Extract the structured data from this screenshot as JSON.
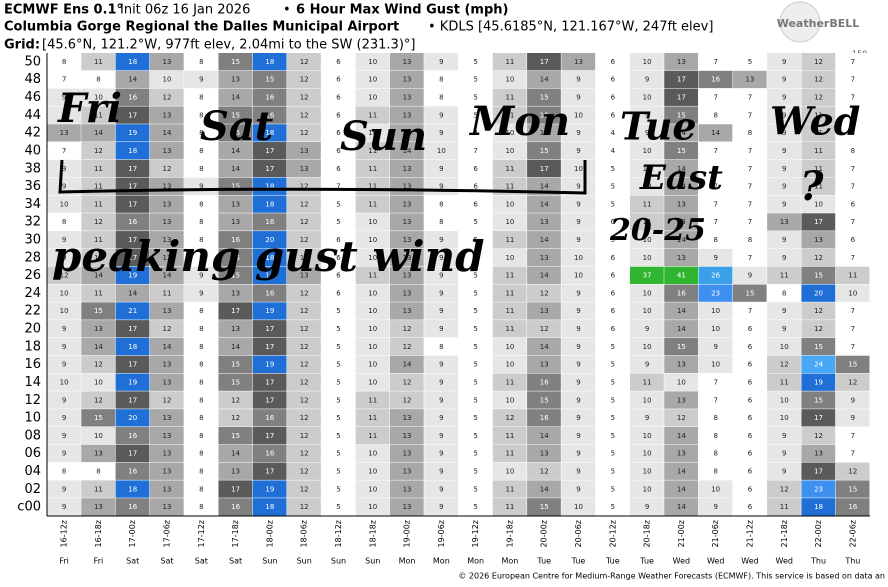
{
  "header": {
    "model": "ECMWF Ens 0.1°",
    "init": "Init 06z 16 Jan 2026",
    "sep": "•",
    "product": "6 Hour Max Wind Gust (mph)",
    "location": "Columbia Gorge Regional the Dalles Municipal Airport",
    "station": "• KDLS [45.6185°N, 121.167°W, 247ft elev]",
    "grid_label": "Grid:",
    "grid": "[45.6°N, 121.2°W, 977ft elev, 2.04mi to the SW (231.3)°]",
    "logo": "WeatherBELL",
    "top_right": "150"
  },
  "heatmap": {
    "columns": [
      "16-12z",
      "16-18z",
      "17-00z",
      "17-06z",
      "17-12z",
      "17-18z",
      "18-00z",
      "18-06z",
      "18-12z",
      "18-18z",
      "19-00z",
      "19-06z",
      "19-12z",
      "19-18z",
      "20-00z",
      "20-06z",
      "20-12z",
      "20-18z",
      "21-00z",
      "21-06z",
      "21-12z",
      "21-18z",
      "22-00z",
      "22-06z"
    ],
    "days": [
      "Fri",
      "Fri",
      "Sat",
      "Sat",
      "Sat",
      "Sat",
      "Sun",
      "Sun",
      "Sun",
      "Sun",
      "Mon",
      "Mon",
      "Mon",
      "Mon",
      "Tue",
      "Tue",
      "Tue",
      "Tue",
      "Wed",
      "Wed",
      "Wed",
      "Wed",
      "Thu",
      "Thu"
    ],
    "rows": [
      "50",
      "48",
      "46",
      "44",
      "42",
      "40",
      "38",
      "36",
      "34",
      "32",
      "30",
      "28",
      "26",
      "24",
      "22",
      "20",
      "18",
      "16",
      "14",
      "12",
      "10",
      "08",
      "06",
      "04",
      "02",
      "c00"
    ],
    "values": [
      [
        8,
        11,
        18,
        13,
        8,
        15,
        18,
        12,
        6,
        10,
        13,
        9,
        5,
        11,
        17,
        13,
        6,
        10,
        13,
        7,
        5,
        9,
        12,
        7
      ],
      [
        7,
        8,
        14,
        10,
        9,
        13,
        15,
        12,
        6,
        10,
        13,
        8,
        5,
        10,
        14,
        9,
        6,
        9,
        17,
        16,
        13,
        9,
        12,
        7
      ],
      [
        9,
        10,
        16,
        12,
        8,
        14,
        16,
        12,
        6,
        10,
        13,
        8,
        5,
        11,
        15,
        9,
        6,
        10,
        17,
        7,
        7,
        9,
        12,
        7
      ],
      [
        9,
        11,
        17,
        13,
        8,
        15,
        16,
        12,
        6,
        11,
        13,
        9,
        5,
        11,
        16,
        10,
        6,
        9,
        15,
        8,
        7,
        9,
        11,
        7
      ],
      [
        13,
        14,
        19,
        14,
        8,
        15,
        18,
        12,
        6,
        10,
        14,
        9,
        4,
        10,
        14,
        9,
        4,
        9,
        14,
        14,
        8,
        9,
        11,
        4
      ],
      [
        7,
        12,
        18,
        13,
        8,
        14,
        17,
        13,
        6,
        11,
        14,
        10,
        7,
        10,
        15,
        9,
        4,
        10,
        15,
        7,
        7,
        9,
        11,
        8
      ],
      [
        9,
        11,
        17,
        12,
        8,
        14,
        17,
        13,
        6,
        11,
        13,
        9,
        6,
        11,
        17,
        10,
        5,
        10,
        14,
        7,
        7,
        9,
        11,
        7
      ],
      [
        9,
        11,
        17,
        13,
        9,
        15,
        18,
        12,
        7,
        11,
        13,
        9,
        6,
        11,
        14,
        9,
        5,
        10,
        14,
        7,
        7,
        9,
        11,
        7
      ],
      [
        10,
        11,
        17,
        13,
        8,
        13,
        18,
        12,
        5,
        11,
        13,
        8,
        6,
        10,
        14,
        9,
        5,
        11,
        13,
        7,
        7,
        9,
        10,
        6
      ],
      [
        8,
        12,
        16,
        13,
        8,
        13,
        16,
        12,
        5,
        10,
        13,
        8,
        5,
        10,
        13,
        9,
        6,
        11,
        13,
        7,
        7,
        13,
        17,
        7
      ],
      [
        9,
        11,
        17,
        13,
        8,
        16,
        20,
        12,
        6,
        10,
        13,
        9,
        5,
        11,
        14,
        9,
        5,
        10,
        14,
        8,
        8,
        9,
        13,
        6
      ],
      [
        9,
        12,
        17,
        13,
        8,
        15,
        18,
        12,
        6,
        10,
        13,
        9,
        6,
        10,
        13,
        10,
        6,
        10,
        13,
        9,
        7,
        9,
        12,
        7
      ],
      [
        12,
        14,
        19,
        14,
        9,
        15,
        18,
        13,
        6,
        11,
        13,
        9,
        5,
        11,
        14,
        10,
        6,
        37,
        41,
        26,
        9,
        11,
        15,
        11
      ],
      [
        10,
        11,
        14,
        11,
        9,
        13,
        16,
        12,
        6,
        10,
        13,
        9,
        5,
        11,
        12,
        9,
        6,
        10,
        16,
        23,
        15,
        8,
        20,
        10
      ],
      [
        10,
        15,
        21,
        13,
        8,
        17,
        19,
        12,
        5,
        10,
        13,
        9,
        5,
        11,
        13,
        9,
        6,
        10,
        14,
        10,
        7,
        9,
        12,
        7
      ],
      [
        9,
        13,
        17,
        12,
        8,
        13,
        17,
        12,
        5,
        10,
        12,
        9,
        5,
        11,
        12,
        9,
        6,
        9,
        14,
        10,
        6,
        9,
        12,
        7
      ],
      [
        9,
        14,
        18,
        14,
        8,
        14,
        17,
        12,
        5,
        10,
        12,
        8,
        5,
        10,
        14,
        9,
        5,
        10,
        15,
        9,
        6,
        10,
        15,
        7
      ],
      [
        9,
        12,
        17,
        13,
        8,
        15,
        19,
        12,
        5,
        10,
        14,
        9,
        5,
        10,
        13,
        9,
        5,
        9,
        13,
        10,
        6,
        12,
        24,
        15
      ],
      [
        10,
        10,
        19,
        13,
        8,
        15,
        17,
        12,
        5,
        10,
        12,
        9,
        5,
        11,
        16,
        9,
        5,
        11,
        10,
        7,
        6,
        11,
        19,
        12
      ],
      [
        9,
        12,
        17,
        12,
        8,
        12,
        17,
        12,
        5,
        11,
        12,
        9,
        5,
        10,
        15,
        9,
        5,
        10,
        13,
        7,
        6,
        10,
        15,
        9
      ],
      [
        9,
        15,
        20,
        13,
        8,
        12,
        16,
        12,
        5,
        11,
        13,
        9,
        5,
        12,
        16,
        9,
        5,
        9,
        12,
        8,
        6,
        10,
        17,
        9
      ],
      [
        9,
        10,
        16,
        13,
        8,
        15,
        17,
        12,
        5,
        11,
        13,
        9,
        5,
        11,
        14,
        9,
        5,
        10,
        14,
        8,
        6,
        9,
        12,
        7
      ],
      [
        9,
        13,
        17,
        13,
        8,
        14,
        16,
        12,
        5,
        10,
        13,
        9,
        5,
        11,
        13,
        9,
        5,
        10,
        13,
        8,
        6,
        9,
        13,
        7
      ],
      [
        8,
        8,
        16,
        13,
        8,
        13,
        17,
        12,
        5,
        10,
        13,
        9,
        5,
        10,
        12,
        9,
        5,
        10,
        14,
        8,
        6,
        9,
        17,
        12
      ],
      [
        9,
        11,
        18,
        13,
        8,
        17,
        19,
        12,
        5,
        10,
        13,
        9,
        5,
        11,
        14,
        9,
        5,
        10,
        14,
        10,
        6,
        12,
        23,
        15
      ],
      [
        9,
        13,
        16,
        13,
        8,
        16,
        18,
        12,
        5,
        10,
        13,
        9,
        5,
        11,
        15,
        10,
        5,
        9,
        14,
        9,
        6,
        11,
        18,
        16
      ]
    ],
    "color_scale": [
      {
        "min": 0,
        "color": "#ffffff"
      },
      {
        "min": 9,
        "color": "#e6e6e6"
      },
      {
        "min": 11,
        "color": "#cccccc"
      },
      {
        "min": 13,
        "color": "#a8a8a8"
      },
      {
        "min": 15,
        "color": "#808080"
      },
      {
        "min": 17,
        "color": "#5a5a5a"
      },
      {
        "min": 18,
        "color": "#1f6fd6"
      },
      {
        "min": 22,
        "color": "#3d8ff0"
      },
      {
        "min": 24,
        "color": "#48a8f5"
      },
      {
        "min": 26,
        "color": "#3aa0e8"
      },
      {
        "min": 30,
        "color": "#2fb52f"
      }
    ]
  },
  "annotations": [
    "Fri",
    "Sat",
    "Sun",
    "Mon",
    "Tue",
    "Wed",
    "East",
    "20-25",
    "?",
    "peaking gust wind"
  ],
  "footer": "© 2026 European Centre for Medium-Range Weather Forecasts (ECMWF). This service is based on data an"
}
